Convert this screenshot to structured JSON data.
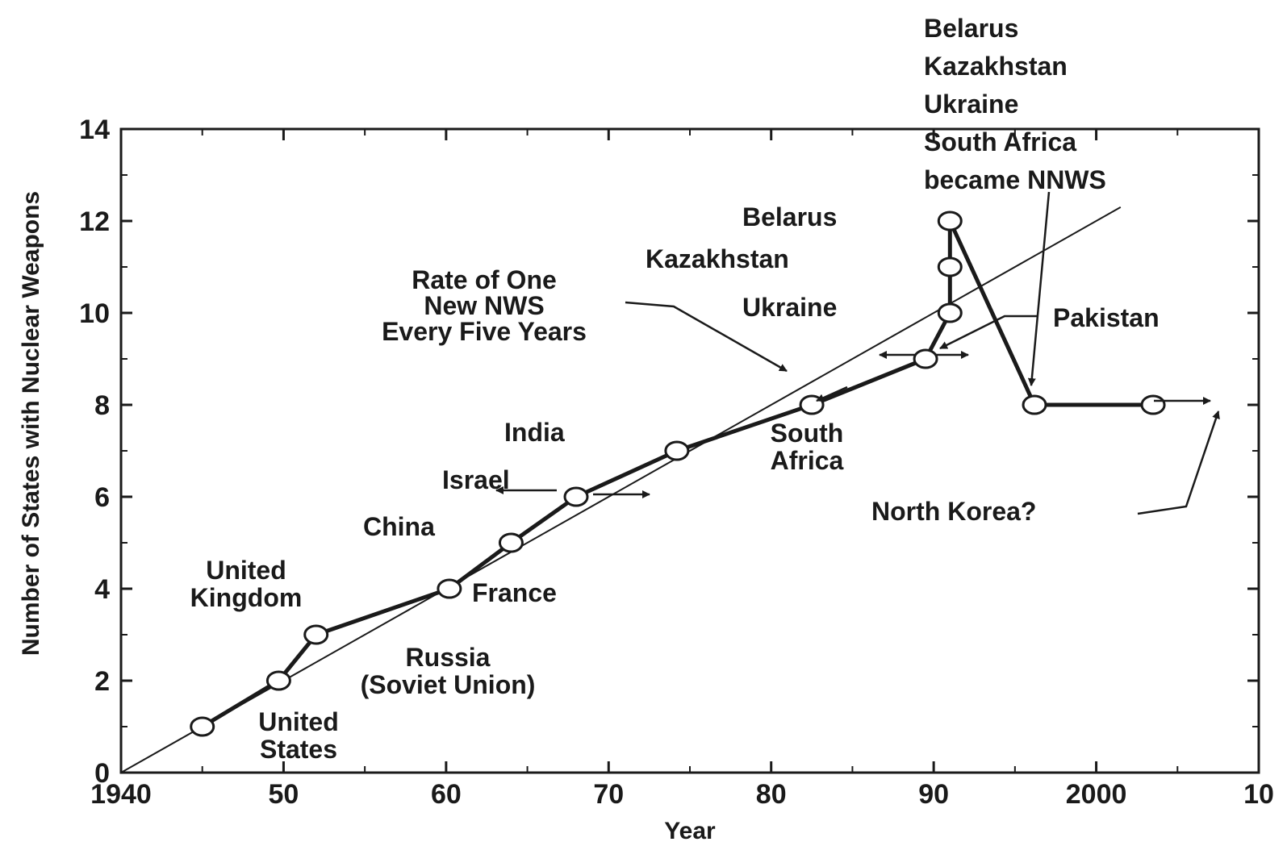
{
  "chart_data": {
    "type": "line",
    "xlabel": "Year",
    "ylabel": "Number of States with Nuclear Weapons",
    "xlim": [
      1940,
      2010
    ],
    "ylim": [
      0,
      14
    ],
    "x_ticks": [
      {
        "value": 1940,
        "label": "1940"
      },
      {
        "value": 1950,
        "label": "50"
      },
      {
        "value": 1960,
        "label": "60"
      },
      {
        "value": 1970,
        "label": "70"
      },
      {
        "value": 1980,
        "label": "80"
      },
      {
        "value": 1990,
        "label": "90"
      },
      {
        "value": 2000,
        "label": "2000"
      },
      {
        "value": 2010,
        "label": "10"
      }
    ],
    "y_ticks": [
      {
        "value": 0,
        "label": "0"
      },
      {
        "value": 2,
        "label": "2"
      },
      {
        "value": 4,
        "label": "4"
      },
      {
        "value": 6,
        "label": "6"
      },
      {
        "value": 8,
        "label": "8"
      },
      {
        "value": 10,
        "label": "10"
      },
      {
        "value": 12,
        "label": "12"
      },
      {
        "value": 14,
        "label": "14"
      }
    ],
    "grid": false,
    "series": [
      {
        "values": [
          {
            "x": 1945.0,
            "y": 1
          },
          {
            "x": 1949.7,
            "y": 2
          },
          {
            "x": 1952.0,
            "y": 3
          },
          {
            "x": 1960.2,
            "y": 4
          },
          {
            "x": 1964.0,
            "y": 5
          },
          {
            "x": 1968.0,
            "y": 6
          },
          {
            "x": 1974.2,
            "y": 7
          },
          {
            "x": 1982.5,
            "y": 8
          },
          {
            "x": 1989.5,
            "y": 9
          },
          {
            "x": 1991.0,
            "y": 10
          },
          {
            "x": 1991.0,
            "y": 11
          },
          {
            "x": 1991.0,
            "y": 12
          },
          {
            "x": 1996.2,
            "y": 8
          },
          {
            "x": 2003.5,
            "y": 8
          }
        ]
      }
    ],
    "trend_line": {
      "from": {
        "x": 1940,
        "y": 0
      },
      "to": {
        "x": 2001.5,
        "y": 12.3
      }
    },
    "annotations": [
      {
        "id": "us",
        "lines": [
          "United",
          "States"
        ]
      },
      {
        "id": "russia",
        "lines": [
          "Russia",
          "(Soviet Union)"
        ]
      },
      {
        "id": "uk",
        "lines": [
          "United",
          "Kingdom"
        ]
      },
      {
        "id": "france",
        "lines": [
          "France"
        ]
      },
      {
        "id": "china",
        "lines": [
          "China"
        ]
      },
      {
        "id": "israel",
        "lines": [
          "Israel"
        ]
      },
      {
        "id": "india",
        "lines": [
          "India"
        ]
      },
      {
        "id": "rate",
        "lines": [
          "Rate of One",
          "New NWS",
          "Every Five Years"
        ]
      },
      {
        "id": "south-africa",
        "lines": [
          "South",
          "Africa"
        ]
      },
      {
        "id": "ukraine",
        "lines": [
          "Ukraine"
        ]
      },
      {
        "id": "kazakhstan",
        "lines": [
          "Kazakhstan"
        ]
      },
      {
        "id": "belarus",
        "lines": [
          "Belarus"
        ]
      },
      {
        "id": "pakistan",
        "lines": [
          "Pakistan"
        ]
      },
      {
        "id": "nnws",
        "lines": [
          "Belarus",
          "Kazakhstan",
          "Ukraine",
          "South Africa",
          "became NNWS"
        ]
      },
      {
        "id": "north-korea",
        "lines": [
          "North Korea?"
        ]
      }
    ]
  },
  "colors": {
    "ink": "#1a1a1a",
    "background": "#ffffff",
    "marker_fill": "#ffffff"
  }
}
